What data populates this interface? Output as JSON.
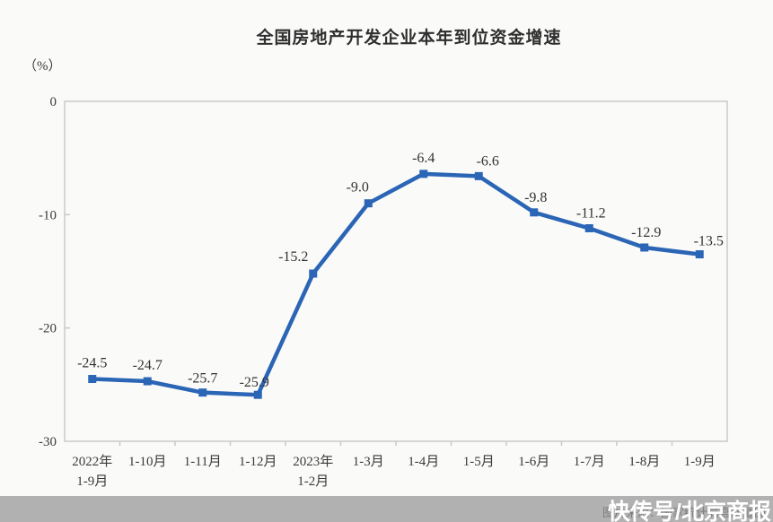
{
  "title": "全国房地产开发企业本年到位资金增速",
  "chart_data": {
    "type": "line",
    "title": "全国房地产开发企业本年到位资金增速",
    "ylabel": "（%）",
    "ylim": [
      -30,
      0
    ],
    "yticks": [
      0,
      -10,
      -20,
      -30
    ],
    "categories": [
      [
        "2022年",
        "1-9月"
      ],
      [
        "1-10月"
      ],
      [
        "1-11月"
      ],
      [
        "1-12月"
      ],
      [
        "2023年",
        "1-2月"
      ],
      [
        "1-3月"
      ],
      [
        "1-4月"
      ],
      [
        "1-5月"
      ],
      [
        "1-6月"
      ],
      [
        "1-7月"
      ],
      [
        "1-8月"
      ],
      [
        "1-9月"
      ]
    ],
    "series": [
      {
        "name": "本年到位资金增速",
        "values": [
          -24.5,
          -24.7,
          -25.7,
          -25.9,
          -15.2,
          -9.0,
          -6.4,
          -6.6,
          -9.8,
          -11.2,
          -12.9,
          -13.5
        ]
      }
    ],
    "grid": false,
    "legend": "none",
    "line_color": "#2b65b5",
    "marker": "square",
    "axis_color": "#c9c9c9"
  },
  "footer": {
    "caption": "图片来源：国家统计局官网截图",
    "watermark": "快传号/北京商报",
    "bar_color": "#b1b1b1"
  }
}
